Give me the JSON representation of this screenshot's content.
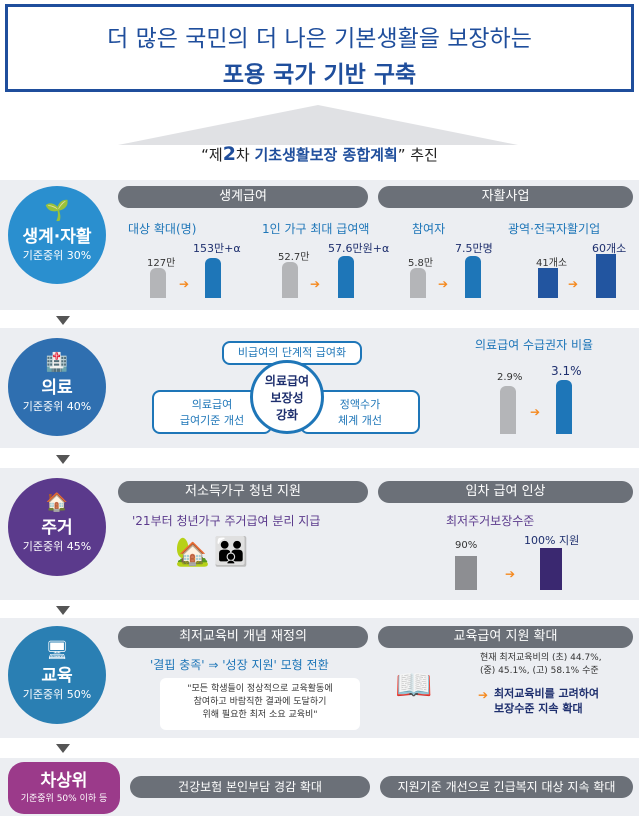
{
  "header": {
    "line1": "더 많은 국민의 더 나은 기본생활을 보장하는",
    "line2": "포용 국가 기반 구축"
  },
  "subtitle": {
    "quote_open": "“제",
    "num": "2",
    "cha": "차 ",
    "plan": "기초생활보장 종합계획",
    "quote_close": "”",
    "suffix": " 추진"
  },
  "sections": {
    "s1": {
      "label": "생계·자활",
      "sub": "기준중위 30%",
      "pill_left": "생계급여",
      "pill_right": "자활사업",
      "c1": {
        "title": "대상 확대(명)",
        "before": "127만",
        "after": "153만+α",
        "y1": "'20",
        "y2": "'23"
      },
      "c2": {
        "title": "1인 가구 최대 급여액",
        "before": "52.7만",
        "after": "57.6만원+α",
        "y1": "'20",
        "y2": "'23"
      },
      "c3": {
        "title": "참여자",
        "before": "5.8만",
        "after": "7.5만명",
        "y1": "'20",
        "y2": "'23"
      },
      "c4": {
        "title": "광역·전국자활기업",
        "before": "41개소",
        "after": "60개소",
        "y1": "'20",
        "y2": "'23"
      }
    },
    "s2": {
      "label": "의료",
      "sub": "기준중위 40%",
      "top": "비급여의 단계적 급여화",
      "center": "의료급여\n보장성\n강화",
      "left": "의료급여\n급여기준 개선",
      "right": "정액수가\n체계 개선",
      "ratio_title": "의료급여 수급권자 비율",
      "before": "2.9%",
      "after": "3.1%",
      "y1": "'19",
      "y2": "'23"
    },
    "s3": {
      "label": "주거",
      "sub": "기준중위 45%",
      "pill_left": "저소득가구 청년 지원",
      "pill_right": "임차 급여 인상",
      "left_text": "'21부터 청년가구 주거급여 분리 지급",
      "right_title": "최저주거보장수준",
      "before": "90%",
      "after": "100% 지원"
    },
    "s4": {
      "label": "교육",
      "sub": "기준중위 50%",
      "pill_left": "최저교육비 개념 재정의",
      "pill_right": "교육급여 지원 확대",
      "model": "'결핍 충족' ⇒ '성장 지원' 모형 전환",
      "quote": "\"모든 학생들이 정상적으로 교육활동에\n참여하고 바람직한 결과에 도달하기\n위해 필요한 최저 소요 교육비\"",
      "rate": "현재 최저교육비의 (초) 44.7%,\n(중) 45.1%, (고) 58.1% 수준",
      "action": "최저교육비를 고려하여\n보장수준 지속 확대"
    },
    "s5": {
      "label": "차상위",
      "sub": "기준중위 50% 이하 등",
      "pill_left": "건강보험 본인부담 경감 확대",
      "pill_right": "지원기준 개선으로 긴급복지 대상 지속 확대"
    }
  },
  "colors": {
    "navy": "#1f4e9c",
    "blue": "#1e76b8",
    "purple": "#5b3a8c",
    "teal": "#2a7fb3",
    "magenta": "#9b3a8a",
    "orange": "#f5891f"
  }
}
